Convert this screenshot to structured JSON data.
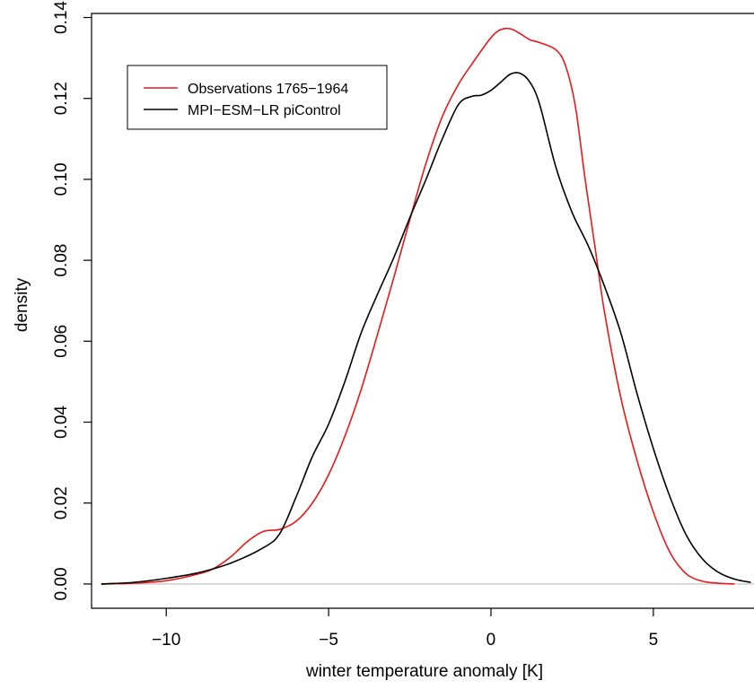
{
  "chart_data": {
    "type": "line",
    "title": "",
    "xlabel": "winter temperature anomaly [K]",
    "ylabel": "density",
    "xlim": [
      -12.3,
      8.1
    ],
    "ylim": [
      -0.006,
      0.141
    ],
    "x_ticks": [
      -10,
      -5,
      0,
      5
    ],
    "x_tick_labels": [
      "−10",
      "−5",
      "0",
      "5"
    ],
    "y_ticks": [
      0.0,
      0.02,
      0.04,
      0.06,
      0.08,
      0.1,
      0.12,
      0.14
    ],
    "y_tick_labels": [
      "0.00",
      "0.02",
      "0.04",
      "0.06",
      "0.08",
      "0.10",
      "0.12",
      "0.14"
    ],
    "baseline": 0,
    "legend_position": "top-left",
    "series": [
      {
        "name": "Observations 1765−1964",
        "color": "#e8191c",
        "x": [
          -12.0,
          -11.0,
          -10.0,
          -9.0,
          -8.5,
          -8.0,
          -7.5,
          -7.0,
          -6.5,
          -6.0,
          -5.5,
          -5.0,
          -4.5,
          -4.0,
          -3.5,
          -3.0,
          -2.5,
          -2.0,
          -1.5,
          -1.0,
          -0.5,
          0.0,
          0.3,
          0.6,
          0.9,
          1.2,
          1.5,
          2.0,
          2.3,
          2.6,
          2.9,
          3.2,
          3.5,
          4.0,
          4.5,
          5.0,
          5.5,
          6.0,
          6.5,
          7.0,
          7.5
        ],
        "y": [
          0.0,
          0.0002,
          0.0008,
          0.0025,
          0.004,
          0.0068,
          0.0105,
          0.013,
          0.0135,
          0.0155,
          0.02,
          0.027,
          0.0365,
          0.048,
          0.0615,
          0.0755,
          0.09,
          0.104,
          0.1155,
          0.1235,
          0.1295,
          0.135,
          0.137,
          0.1372,
          0.136,
          0.1345,
          0.1338,
          0.132,
          0.128,
          0.118,
          0.1,
          0.0835,
          0.067,
          0.046,
          0.0305,
          0.0178,
          0.008,
          0.0026,
          0.0007,
          0.0002,
          0.0
        ]
      },
      {
        "name": "MPI−ESM−LR piControl",
        "color": "#000000",
        "x": [
          -12.0,
          -11.0,
          -10.0,
          -9.0,
          -8.0,
          -7.0,
          -6.5,
          -6.0,
          -5.5,
          -5.0,
          -4.5,
          -4.0,
          -3.5,
          -3.0,
          -2.5,
          -2.0,
          -1.5,
          -1.0,
          -0.6,
          -0.3,
          0.0,
          0.3,
          0.6,
          0.9,
          1.2,
          1.5,
          2.0,
          2.5,
          3.0,
          3.5,
          4.0,
          4.5,
          5.0,
          5.5,
          6.0,
          6.5,
          7.0,
          7.5,
          8.0
        ],
        "y": [
          0.0,
          0.0004,
          0.0014,
          0.0028,
          0.0052,
          0.009,
          0.0125,
          0.0215,
          0.0315,
          0.0395,
          0.05,
          0.062,
          0.0715,
          0.0805,
          0.0905,
          0.1,
          0.11,
          0.1185,
          0.1205,
          0.1208,
          0.122,
          0.124,
          0.126,
          0.1262,
          0.124,
          0.1185,
          0.103,
          0.0918,
          0.0835,
          0.0735,
          0.062,
          0.047,
          0.0335,
          0.0218,
          0.0123,
          0.0063,
          0.0029,
          0.0012,
          0.0004
        ]
      }
    ]
  }
}
